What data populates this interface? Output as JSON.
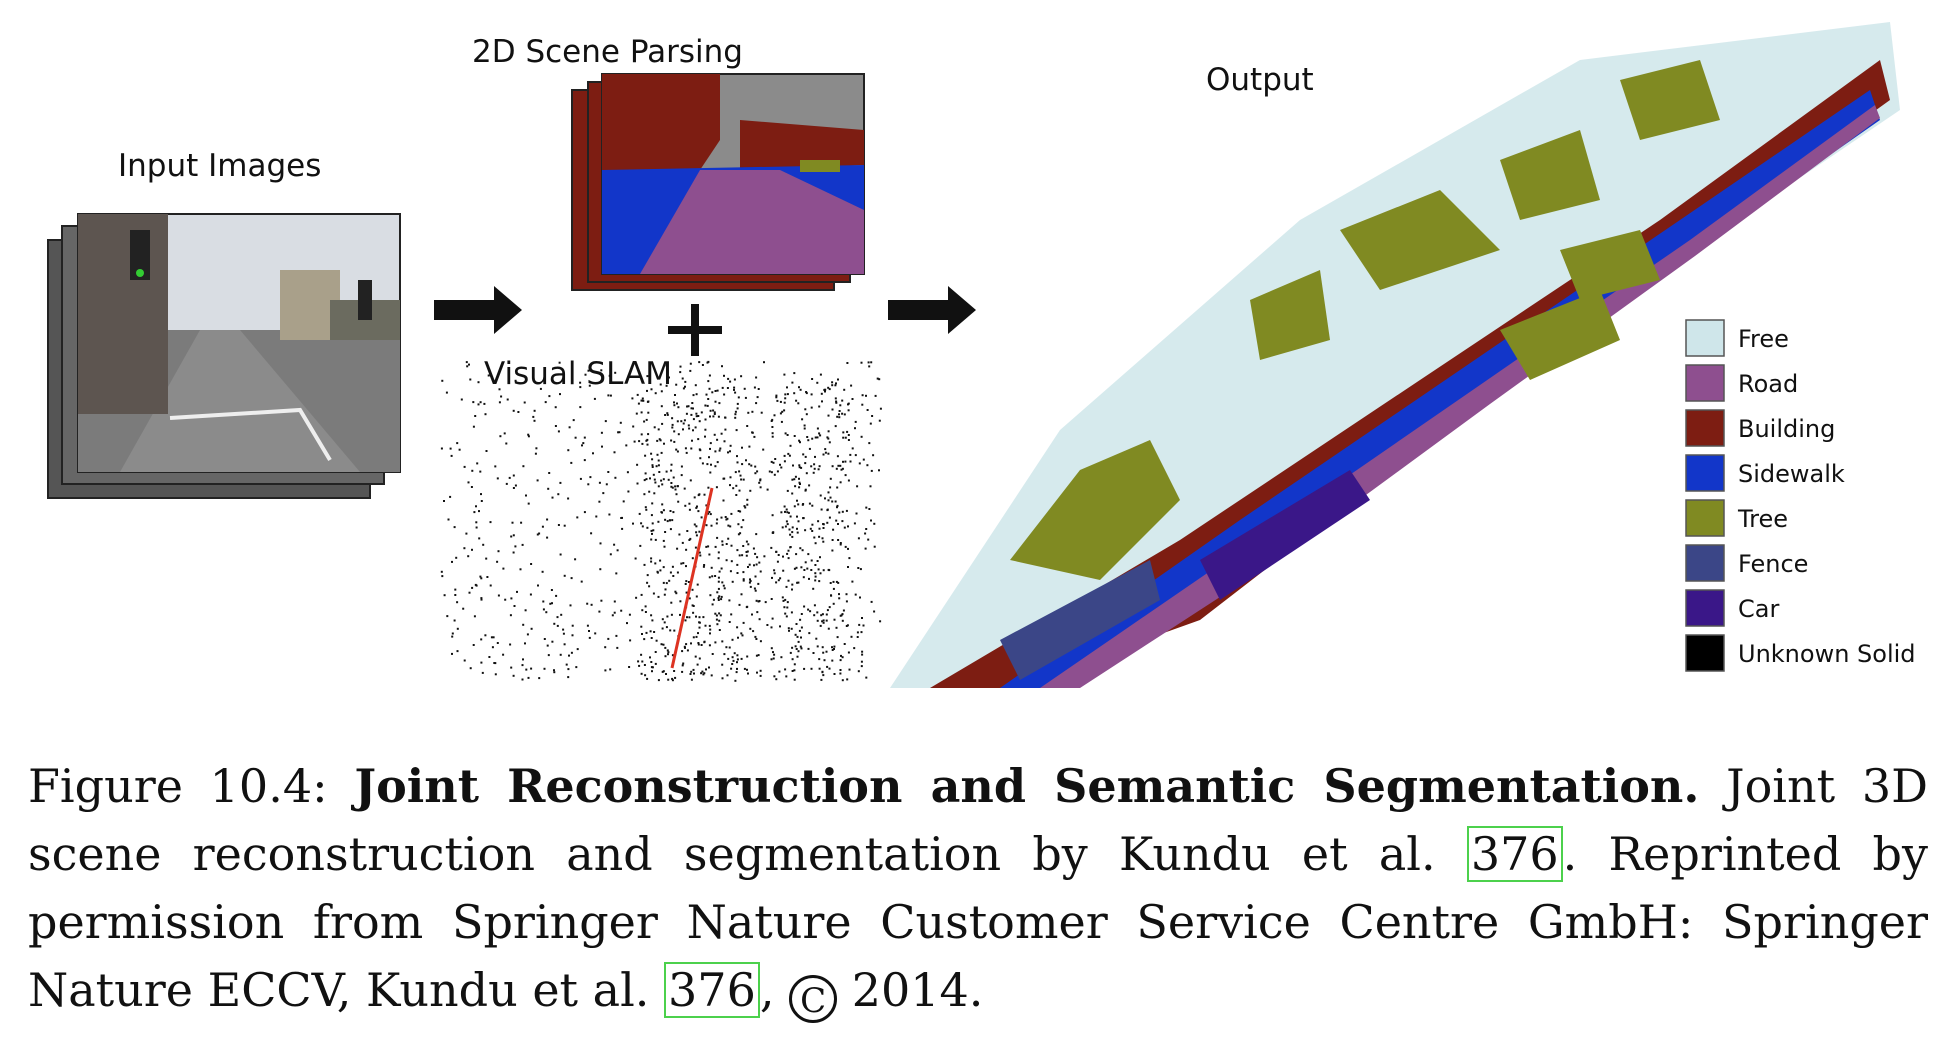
{
  "figure": {
    "labels": {
      "input_images": "Input Images",
      "scene_parsing": "2D Scene Parsing",
      "visual_slam": "Visual SLAM",
      "output": "Output"
    },
    "legend": [
      {
        "label": "Free",
        "color": "#cfe6ea"
      },
      {
        "label": "Road",
        "color": "#8e4f8f"
      },
      {
        "label": "Building",
        "color": "#7d1d12"
      },
      {
        "label": "Sidewalk",
        "color": "#1236c9"
      },
      {
        "label": "Tree",
        "color": "#808a22"
      },
      {
        "label": "Fence",
        "color": "#3b4687"
      },
      {
        "label": "Car",
        "color": "#3a1788"
      },
      {
        "label": "Unknown Solid",
        "color": "#000000"
      }
    ]
  },
  "caption": {
    "prefix": "Figure 10.4: ",
    "title": "Joint Reconstruction and Semantic Segmentation.",
    "body1": " Joint 3D scene reconstruction and segmentation by Kundu et al. ",
    "cite1": "376",
    "body2": ". Reprinted by permission from Springer Nature Customer Service Centre GmbH: Springer Nature ECCV, Kundu et al. ",
    "cite2": "376",
    "body3": ", ",
    "copyright": "C",
    "body4": " 2014."
  }
}
